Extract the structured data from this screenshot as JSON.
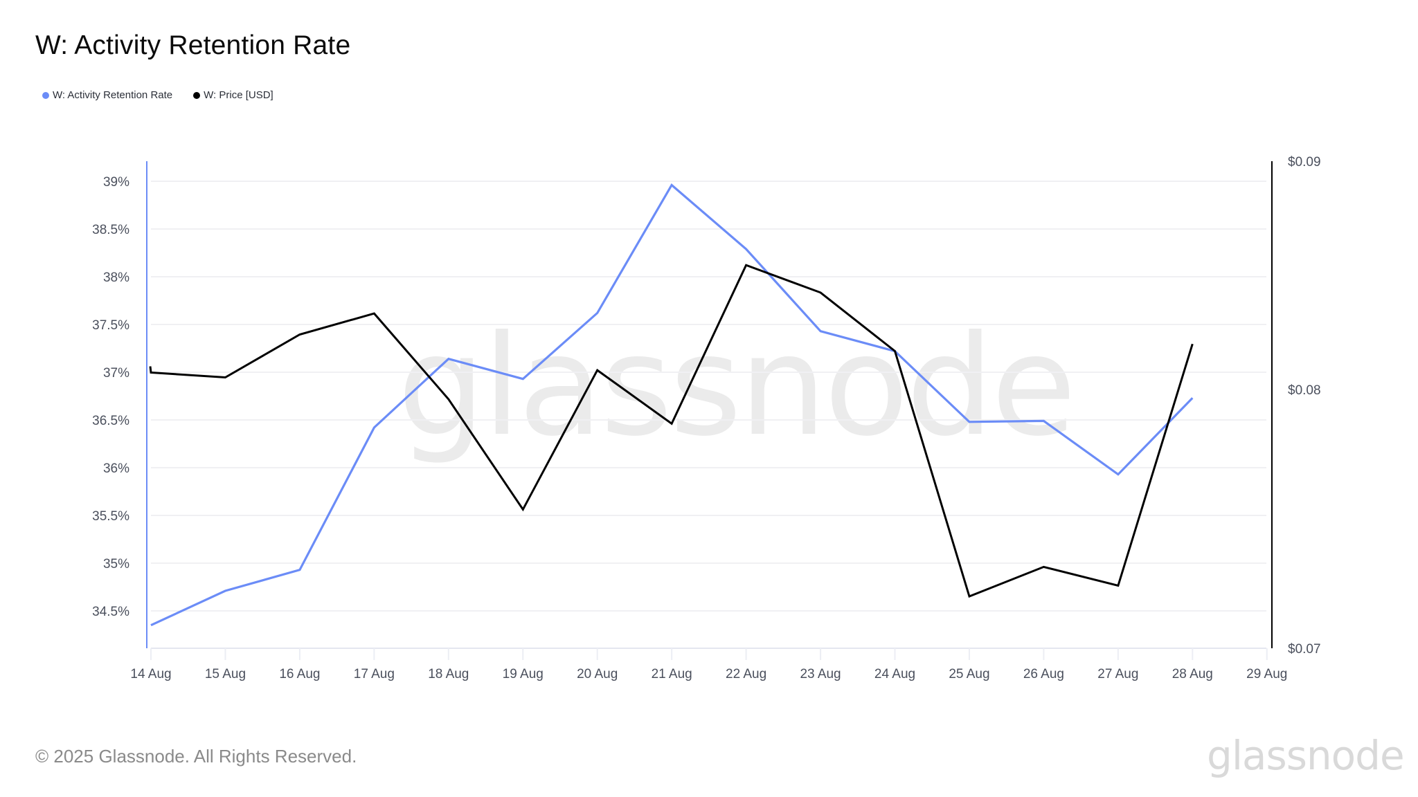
{
  "title": "W: Activity Retention Rate",
  "legend": [
    {
      "label": "W: Activity Retention Rate",
      "color": "#6b8cf7"
    },
    {
      "label": "W: Price [USD]",
      "color": "#000000"
    }
  ],
  "footer": {
    "copyright": "© 2025 Glassnode. All Rights Reserved.",
    "logo": "glassnode"
  },
  "watermark": "glassnode",
  "chart_data": {
    "type": "line",
    "title": "W: Activity Retention Rate",
    "xlabel": "",
    "ylabel": "",
    "categories": [
      "14 Aug",
      "15 Aug",
      "16 Aug",
      "17 Aug",
      "18 Aug",
      "19 Aug",
      "20 Aug",
      "21 Aug",
      "22 Aug",
      "23 Aug",
      "24 Aug",
      "25 Aug",
      "26 Aug",
      "27 Aug",
      "28 Aug"
    ],
    "x_ticks": [
      "14 Aug",
      "15 Aug",
      "16 Aug",
      "17 Aug",
      "18 Aug",
      "19 Aug",
      "20 Aug",
      "21 Aug",
      "22 Aug",
      "23 Aug",
      "24 Aug",
      "25 Aug",
      "26 Aug",
      "27 Aug",
      "28 Aug",
      "29 Aug"
    ],
    "series": [
      {
        "name": "W: Activity Retention Rate",
        "axis": "left",
        "unit": "%",
        "color": "#6b8cf7",
        "values": [
          34.35,
          34.71,
          34.93,
          36.42,
          37.14,
          36.93,
          37.62,
          38.96,
          38.29,
          37.43,
          37.22,
          36.48,
          36.49,
          35.93,
          36.73
        ]
      },
      {
        "name": "W: Price [USD]",
        "axis": "right",
        "unit": "USD",
        "color": "#000000",
        "values": [
          0.0807,
          0.0805,
          0.0823,
          0.0832,
          0.0796,
          0.0752,
          0.0808,
          0.0786,
          0.0853,
          0.0841,
          0.0816,
          0.0719,
          0.073,
          0.0723,
          0.0819
        ]
      }
    ],
    "left_axis": {
      "ticks": [
        "39%",
        "38.5%",
        "38%",
        "37.5%",
        "37%",
        "36.5%",
        "36%",
        "35.5%",
        "35%",
        "34.5%"
      ],
      "tick_values": [
        39,
        38.5,
        38,
        37.5,
        37,
        36.5,
        36,
        35.5,
        35,
        34.5
      ],
      "range": [
        34.0,
        39.21
      ],
      "color": "#6b8cf7"
    },
    "right_axis": {
      "ticks": [
        "$0.09",
        "$0.08",
        "$0.07"
      ],
      "tick_values": [
        0.09,
        0.08,
        0.07
      ],
      "range": [
        0.07,
        0.09
      ],
      "scale": "log",
      "color": "#000000"
    },
    "grid": true,
    "legend_position": "top-left"
  }
}
